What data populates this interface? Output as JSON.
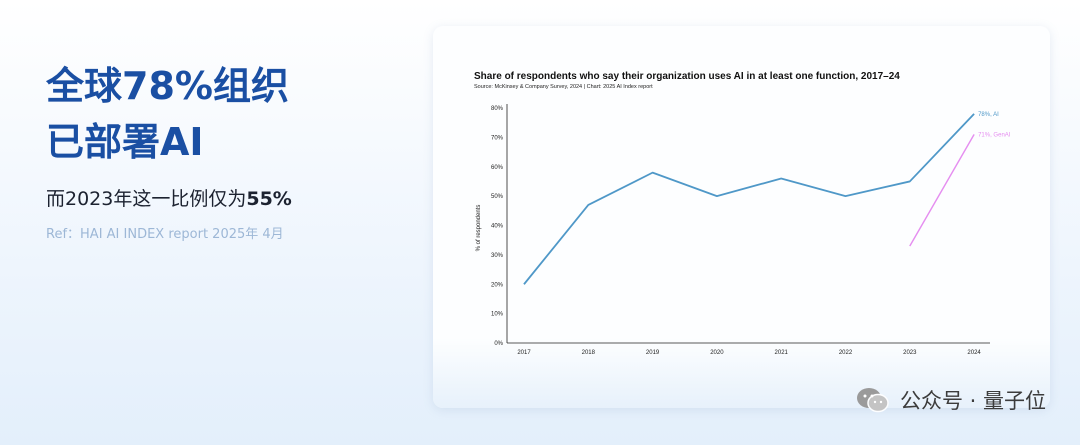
{
  "headline": {
    "line1": "全球78%组织",
    "line2": "已部署AI"
  },
  "subline": {
    "prefix": "而2023年这一比例仅为",
    "highlight": "55%"
  },
  "ref": "Ref：HAI AI INDEX report 2025年 4月",
  "watermark": {
    "icon": "wechat-icon",
    "text": "公众号 · 量子位"
  },
  "colors": {
    "headline": "#1a4fa3",
    "ai_line": "#4f98c8",
    "genai_line": "#e58ef0"
  },
  "chart_data": {
    "type": "line",
    "title": "Share of respondents who say their organization uses AI in at least one function, 2017–24",
    "source": "Source: McKinsey & Company Survey, 2024 | Chart: 2025 AI Index report",
    "xlabel": "",
    "ylabel": "% of respondents",
    "ylim": [
      0,
      80
    ],
    "y_ticks": [
      "0%",
      "10%",
      "20%",
      "30%",
      "40%",
      "50%",
      "60%",
      "70%",
      "80%"
    ],
    "x": [
      "2017",
      "2018",
      "2019",
      "2020",
      "2021",
      "2022",
      "2023",
      "2024"
    ],
    "series": [
      {
        "name": "AI",
        "label": "78%, AI",
        "values": [
          20,
          47,
          58,
          50,
          56,
          50,
          55,
          78
        ]
      },
      {
        "name": "GenAI",
        "label": "71%, GenAI",
        "values": [
          null,
          null,
          null,
          null,
          null,
          null,
          33,
          71
        ]
      }
    ]
  }
}
